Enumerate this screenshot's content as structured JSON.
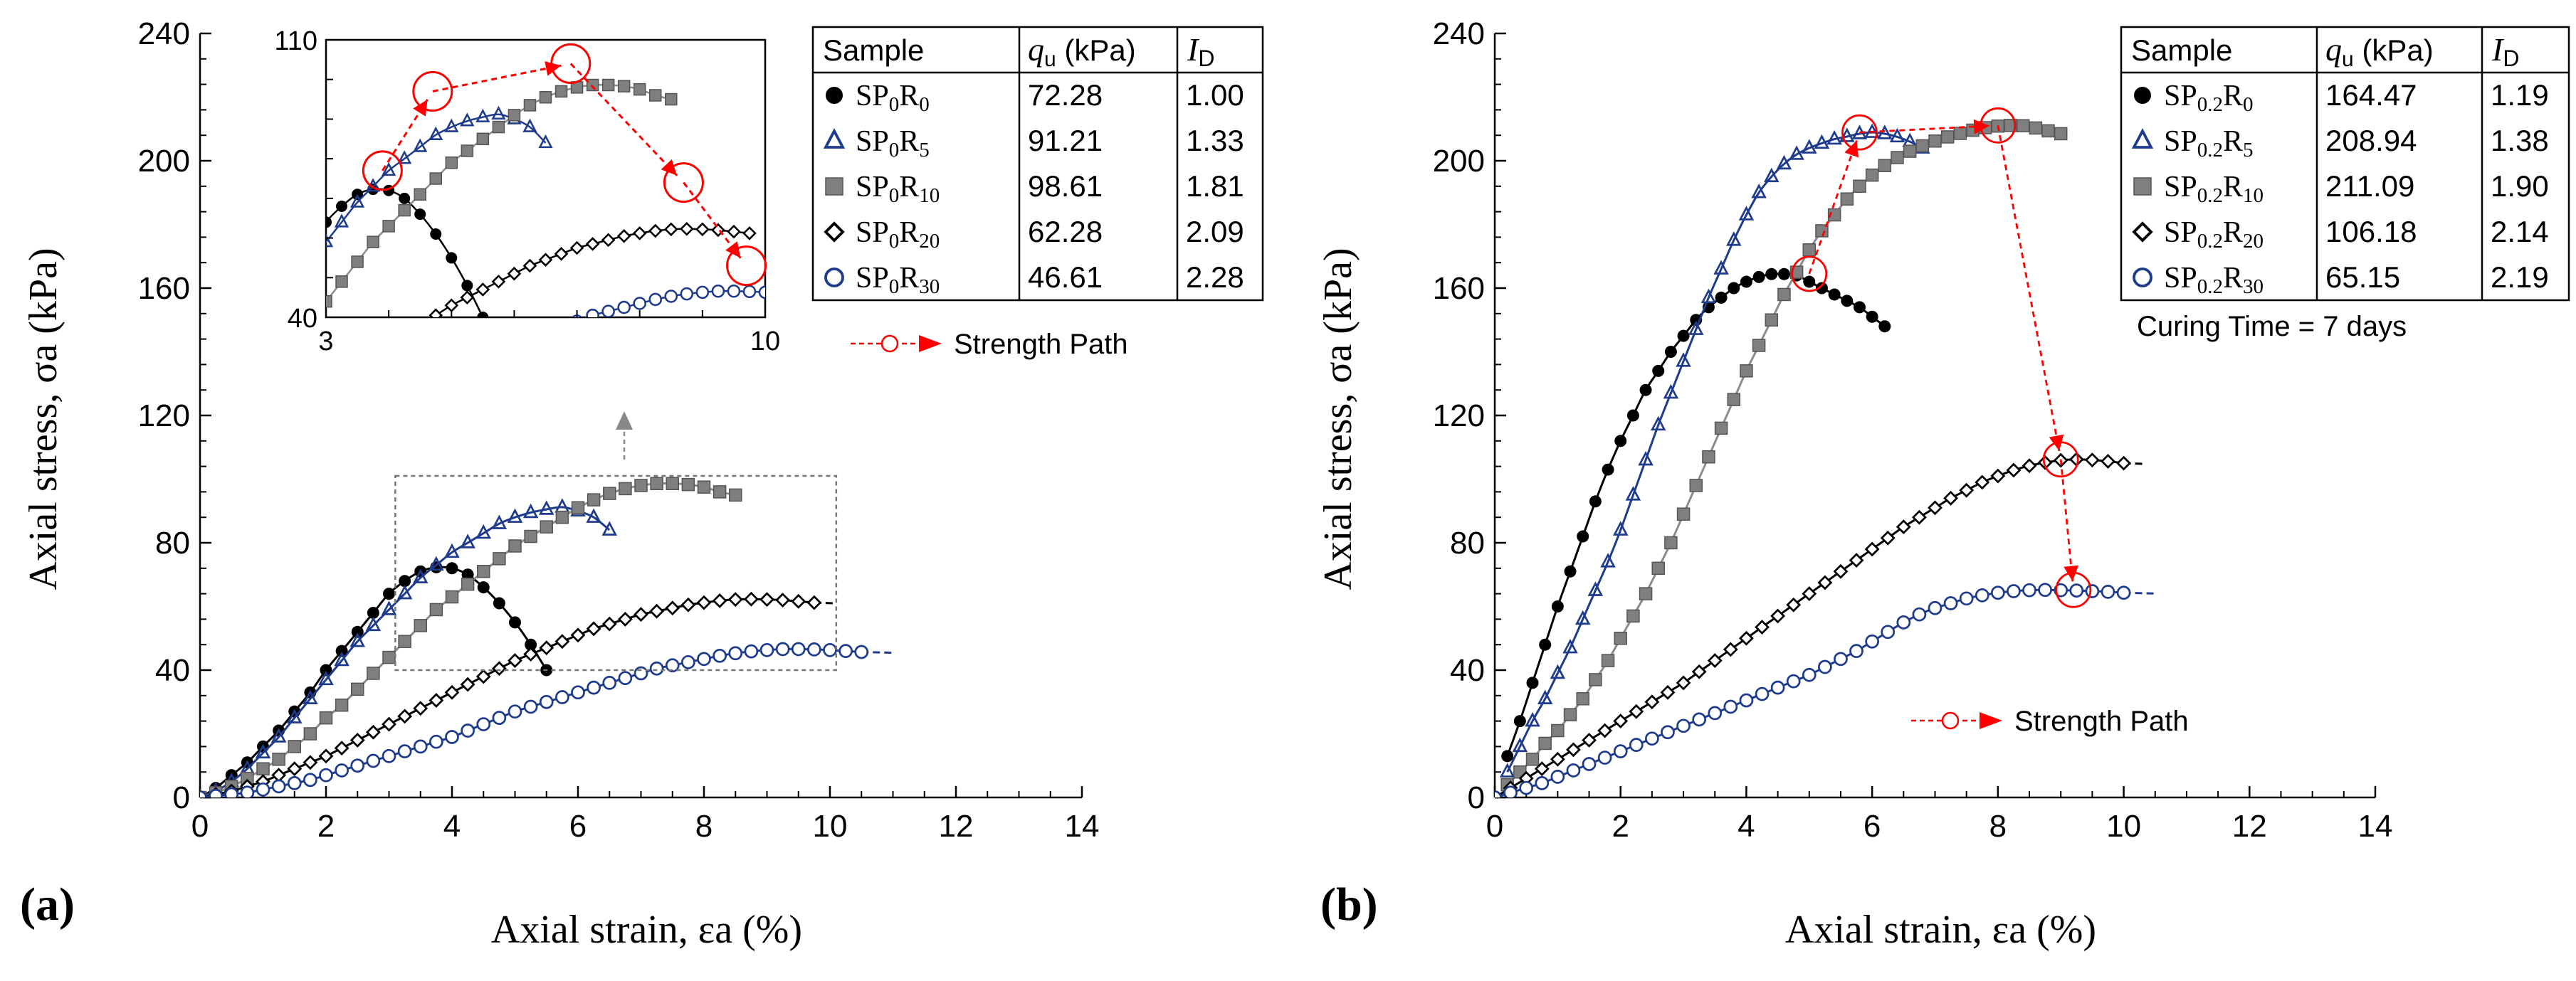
{
  "colors": {
    "black": "#000000",
    "navy": "#1f3b8c",
    "gray_fill": "#7f7f7f",
    "gray_line": "#8c8c8c",
    "red": "#ff0000"
  },
  "chart_data": [
    {
      "id": "a",
      "type": "scatter",
      "panel_label": "(a)",
      "xlabel": "Axial strain, εa (%)",
      "ylabel": "Axial stress, σa (kPa)",
      "xlim": [
        0,
        14
      ],
      "ylim": [
        0,
        240
      ],
      "xticks": [
        "0",
        "2",
        "4",
        "6",
        "8",
        "10",
        "12",
        "14"
      ],
      "yticks": [
        "0",
        "40",
        "80",
        "120",
        "160",
        "200",
        "240"
      ],
      "series": [
        {
          "name": "SP0R0",
          "marker": "circle-filled",
          "color": "#000000",
          "x": [
            0,
            0.25,
            0.5,
            0.75,
            1,
            1.25,
            1.5,
            1.75,
            2,
            2.25,
            2.5,
            2.75,
            3,
            3.25,
            3.5,
            3.75,
            4,
            4.25,
            4.5,
            4.75,
            5,
            5.25,
            5.5
          ],
          "y": [
            0,
            3,
            7,
            11,
            16,
            21,
            27,
            33,
            40,
            46,
            52,
            58,
            64,
            68,
            71,
            72.3,
            72,
            70,
            66,
            61,
            55,
            48,
            40
          ]
        },
        {
          "name": "SP0R5",
          "marker": "triangle-open",
          "color": "#1f3b8c",
          "x": [
            0,
            0.25,
            0.5,
            0.75,
            1,
            1.25,
            1.5,
            1.75,
            2,
            2.25,
            2.5,
            2.75,
            3,
            3.25,
            3.5,
            3.75,
            4,
            4.25,
            4.5,
            4.75,
            5,
            5.25,
            5.5,
            5.75,
            6,
            6.25,
            6.5
          ],
          "y": [
            0,
            2,
            5,
            9,
            14,
            19,
            25,
            31,
            37,
            43,
            49,
            54,
            59,
            64,
            69,
            73,
            77,
            80,
            83,
            86,
            88,
            89.5,
            90.5,
            91.2,
            90,
            88,
            84
          ]
        },
        {
          "name": "SP0R10",
          "marker": "square-filled",
          "color": "#7f7f7f",
          "x": [
            0,
            0.25,
            0.5,
            0.75,
            1,
            1.25,
            1.5,
            1.75,
            2,
            2.25,
            2.5,
            2.75,
            3,
            3.25,
            3.5,
            3.75,
            4,
            4.25,
            4.5,
            4.75,
            5,
            5.25,
            5.5,
            5.75,
            6,
            6.25,
            6.5,
            6.75,
            7,
            7.25,
            7.5,
            7.75,
            8,
            8.25,
            8.5
          ],
          "y": [
            0,
            1.5,
            3.5,
            6,
            9,
            12,
            16,
            20,
            25,
            29,
            34,
            39,
            44,
            49,
            54,
            59,
            63,
            67,
            71,
            75,
            79,
            82,
            85,
            88,
            91,
            93.5,
            95.5,
            97,
            98,
            98.6,
            98.6,
            98.3,
            97.5,
            96,
            95
          ]
        },
        {
          "name": "SP0R20",
          "marker": "diamond-open",
          "color": "#000000",
          "x": [
            0,
            0.25,
            0.5,
            0.75,
            1,
            1.25,
            1.5,
            1.75,
            2,
            2.25,
            2.5,
            2.75,
            3,
            3.25,
            3.5,
            3.75,
            4,
            4.25,
            4.5,
            4.75,
            5,
            5.25,
            5.5,
            5.75,
            6,
            6.25,
            6.5,
            6.75,
            7,
            7.25,
            7.5,
            7.75,
            8,
            8.25,
            8.5,
            8.75,
            9,
            9.25,
            9.5,
            9.75
          ],
          "y": [
            0,
            1,
            2,
            3.5,
            5,
            7,
            9,
            11,
            13,
            15.5,
            18,
            20.5,
            23,
            25.5,
            28,
            30.5,
            33,
            35.5,
            38,
            40.5,
            43,
            45,
            47,
            49,
            51,
            53,
            54.5,
            56,
            57.5,
            58.5,
            59.5,
            60.5,
            61.2,
            61.8,
            62.2,
            62.3,
            62.2,
            62,
            61.6,
            61.2
          ]
        },
        {
          "name": "SP0R30",
          "marker": "circle-open",
          "color": "#1f3b8c",
          "x": [
            0,
            0.25,
            0.5,
            0.75,
            1,
            1.25,
            1.5,
            1.75,
            2,
            2.25,
            2.5,
            2.75,
            3,
            3.25,
            3.5,
            3.75,
            4,
            4.25,
            4.5,
            4.75,
            5,
            5.25,
            5.5,
            5.75,
            6,
            6.25,
            6.5,
            6.75,
            7,
            7.25,
            7.5,
            7.75,
            8,
            8.25,
            8.5,
            8.75,
            9,
            9.25,
            9.5,
            9.75,
            10,
            10.25,
            10.5
          ],
          "y": [
            0,
            0.5,
            1,
            1.5,
            2.5,
            3.5,
            4.5,
            5.5,
            7,
            8.5,
            10,
            11.5,
            13,
            14.5,
            16,
            17.5,
            19,
            21,
            23,
            25,
            27,
            28.5,
            30,
            31.5,
            33,
            34.5,
            36,
            37.5,
            39,
            40.5,
            41.5,
            42.5,
            43.5,
            44.5,
            45.3,
            45.9,
            46.3,
            46.6,
            46.6,
            46.5,
            46.3,
            46,
            45.7
          ]
        }
      ],
      "strength_path": {
        "x": [
          3.75,
          4.5,
          6.5,
          8.5
        ],
        "y": [
          66,
          82,
          92,
          96
        ]
      },
      "inset": {
        "xlim": [
          3,
          10
        ],
        "ylim": [
          40,
          110
        ],
        "xticks": [
          "3",
          "10"
        ],
        "yticks": [
          "40",
          "110"
        ],
        "strength_path": {
          "x": [
            3.9,
            4.7,
            6.9,
            8.7,
            9.7
          ],
          "y": [
            77,
            97,
            104,
            74,
            53
          ]
        }
      },
      "legend_table": {
        "headers": {
          "sample": "Sample",
          "qu_sym": "q",
          "qu_sub": "u",
          "qu_unit": " (kPa)",
          "id_sym": "I",
          "id_sub": "D"
        },
        "rows": [
          {
            "marker": "circle-filled",
            "color": "#000000",
            "s1": "SP",
            "s2": "0",
            "s3": "R",
            "s4": "0",
            "qu": "72.28",
            "id": "1.00"
          },
          {
            "marker": "triangle-open",
            "color": "#1f3b8c",
            "s1": "SP",
            "s2": "0",
            "s3": "R",
            "s4": "5",
            "qu": "91.21",
            "id": "1.33"
          },
          {
            "marker": "square-filled",
            "color": "#7f7f7f",
            "s1": "SP",
            "s2": "0",
            "s3": "R",
            "s4": "10",
            "qu": "98.61",
            "id": "1.81"
          },
          {
            "marker": "diamond-open",
            "color": "#000000",
            "s1": "SP",
            "s2": "0",
            "s3": "R",
            "s4": "20",
            "qu": "62.28",
            "id": "2.09"
          },
          {
            "marker": "circle-open",
            "color": "#1f3b8c",
            "s1": "SP",
            "s2": "0",
            "s3": "R",
            "s4": "30",
            "qu": "46.61",
            "id": "2.28"
          }
        ]
      },
      "path_legend": "Strength Path"
    },
    {
      "id": "b",
      "type": "scatter",
      "panel_label": "(b)",
      "xlabel": "Axial strain, εa (%)",
      "ylabel": "Axial stress, σa (kPa)",
      "xlim": [
        0,
        14
      ],
      "ylim": [
        0,
        240
      ],
      "xticks": [
        "0",
        "2",
        "4",
        "6",
        "8",
        "10",
        "12",
        "14"
      ],
      "yticks": [
        "0",
        "40",
        "80",
        "120",
        "160",
        "200",
        "240"
      ],
      "series": [
        {
          "name": "SP0.2R0",
          "marker": "circle-filled",
          "color": "#000000",
          "x": [
            0.2,
            0.4,
            0.6,
            0.8,
            1,
            1.2,
            1.4,
            1.6,
            1.8,
            2,
            2.2,
            2.4,
            2.6,
            2.8,
            3,
            3.2,
            3.4,
            3.6,
            3.8,
            4,
            4.2,
            4.4,
            4.6,
            4.8,
            5,
            5.2,
            5.4,
            5.6,
            5.8,
            6,
            6.2
          ],
          "y": [
            13,
            24,
            36,
            48,
            60,
            71,
            82,
            93,
            103,
            112,
            120,
            128,
            134,
            140,
            145,
            150,
            154,
            157,
            160,
            162,
            163.5,
            164.4,
            164.4,
            164,
            162,
            160,
            158,
            156,
            154,
            151,
            148
          ]
        },
        {
          "name": "SP0.2R5",
          "marker": "triangle-open",
          "color": "#1f3b8c",
          "x": [
            0.2,
            0.4,
            0.6,
            0.8,
            1,
            1.2,
            1.4,
            1.6,
            1.8,
            2,
            2.2,
            2.4,
            2.6,
            2.8,
            3,
            3.2,
            3.4,
            3.6,
            3.8,
            4,
            4.2,
            4.4,
            4.6,
            4.8,
            5,
            5.2,
            5.4,
            5.6,
            5.8,
            6,
            6.2,
            6.4,
            6.6,
            6.8
          ],
          "y": [
            8,
            16,
            24,
            31,
            39,
            47,
            56,
            65,
            74,
            84,
            95,
            106,
            117,
            127,
            137,
            147,
            157,
            166,
            175,
            183,
            190,
            195,
            199,
            202,
            204,
            205.5,
            206.8,
            207.6,
            208.5,
            208.9,
            208.5,
            207.5,
            206,
            204
          ]
        },
        {
          "name": "SP0.2R10",
          "marker": "square-filled",
          "color": "#7f7f7f",
          "x": [
            0.2,
            0.4,
            0.6,
            0.8,
            1,
            1.2,
            1.4,
            1.6,
            1.8,
            2,
            2.2,
            2.4,
            2.6,
            2.8,
            3,
            3.2,
            3.4,
            3.6,
            3.8,
            4,
            4.2,
            4.4,
            4.6,
            4.8,
            5,
            5.2,
            5.4,
            5.6,
            5.8,
            6,
            6.2,
            6.4,
            6.6,
            6.8,
            7,
            7.2,
            7.4,
            7.6,
            7.8,
            8,
            8.2,
            8.4,
            8.6,
            8.8,
            9
          ],
          "y": [
            4,
            8,
            12,
            17,
            21,
            26,
            31,
            37,
            43,
            50,
            57,
            64,
            72,
            80,
            89,
            98,
            107,
            116,
            125,
            134,
            142,
            150,
            158,
            165,
            172,
            178,
            183,
            188,
            192,
            195.5,
            198.5,
            201,
            203,
            204.7,
            206.2,
            207.5,
            208.6,
            209.6,
            210.4,
            210.9,
            211.1,
            211,
            210.3,
            209.4,
            208.5
          ]
        },
        {
          "name": "SP0.2R20",
          "marker": "diamond-open",
          "color": "#000000",
          "x": [
            0,
            0.25,
            0.5,
            0.75,
            1,
            1.25,
            1.5,
            1.75,
            2,
            2.25,
            2.5,
            2.75,
            3,
            3.25,
            3.5,
            3.75,
            4,
            4.25,
            4.5,
            4.75,
            5,
            5.25,
            5.5,
            5.75,
            6,
            6.25,
            6.5,
            6.75,
            7,
            7.25,
            7.5,
            7.75,
            8,
            8.25,
            8.5,
            8.75,
            9,
            9.25,
            9.5,
            9.75,
            10
          ],
          "y": [
            0,
            3,
            6,
            9,
            12,
            15,
            18,
            21,
            24,
            27,
            30,
            33,
            36,
            39.5,
            43,
            46.5,
            50,
            53.5,
            57,
            60.5,
            64,
            67.5,
            71,
            74.5,
            78,
            81.5,
            85,
            88,
            91,
            94,
            96.5,
            99,
            101,
            102.8,
            104.2,
            105.2,
            105.9,
            106.2,
            106,
            105.6,
            105
          ]
        },
        {
          "name": "SP0.2R30",
          "marker": "circle-open",
          "color": "#1f3b8c",
          "x": [
            0,
            0.25,
            0.5,
            0.75,
            1,
            1.25,
            1.5,
            1.75,
            2,
            2.25,
            2.5,
            2.75,
            3,
            3.25,
            3.5,
            3.75,
            4,
            4.25,
            4.5,
            4.75,
            5,
            5.25,
            5.5,
            5.75,
            6,
            6.25,
            6.5,
            6.75,
            7,
            7.25,
            7.5,
            7.75,
            8,
            8.25,
            8.5,
            8.75,
            9,
            9.25,
            9.5,
            9.75,
            10
          ],
          "y": [
            0,
            1.5,
            3,
            4.5,
            6.5,
            8.5,
            10.5,
            12.5,
            14.5,
            16.5,
            18.5,
            20.5,
            22.5,
            24.5,
            26.5,
            28.5,
            30.5,
            32.5,
            34.5,
            36.5,
            38.5,
            41,
            43.5,
            46,
            49,
            52,
            55,
            57.5,
            59.5,
            61,
            62.5,
            63.5,
            64.3,
            64.8,
            65.1,
            65.2,
            65.1,
            65,
            64.8,
            64.6,
            64.3
          ]
        }
      ],
      "strength_path": {
        "x": [
          5,
          5.8,
          8,
          9,
          9.2
        ],
        "y": [
          164.5,
          208.9,
          211.1,
          106.2,
          65.2
        ]
      },
      "legend_table": {
        "headers": {
          "sample": "Sample",
          "qu_sym": "q",
          "qu_sub": "u",
          "qu_unit": " (kPa)",
          "id_sym": "I",
          "id_sub": "D"
        },
        "rows": [
          {
            "marker": "circle-filled",
            "color": "#000000",
            "s1": "SP",
            "s2": "0.2",
            "s3": "R",
            "s4": "0",
            "qu": "164.47",
            "id": "1.19"
          },
          {
            "marker": "triangle-open",
            "color": "#1f3b8c",
            "s1": "SP",
            "s2": "0.2",
            "s3": "R",
            "s4": "5",
            "qu": "208.94",
            "id": "1.38"
          },
          {
            "marker": "square-filled",
            "color": "#7f7f7f",
            "s1": "SP",
            "s2": "0.2",
            "s3": "R",
            "s4": "10",
            "qu": "211.09",
            "id": "1.90"
          },
          {
            "marker": "diamond-open",
            "color": "#000000",
            "s1": "SP",
            "s2": "0.2",
            "s3": "R",
            "s4": "20",
            "qu": "106.18",
            "id": "2.14"
          },
          {
            "marker": "circle-open",
            "color": "#1f3b8c",
            "s1": "SP",
            "s2": "0.2",
            "s3": "R",
            "s4": "30",
            "qu": "65.15",
            "id": "2.19"
          }
        ]
      },
      "note": "Curing Time = 7 days",
      "path_legend": "Strength Path"
    }
  ]
}
